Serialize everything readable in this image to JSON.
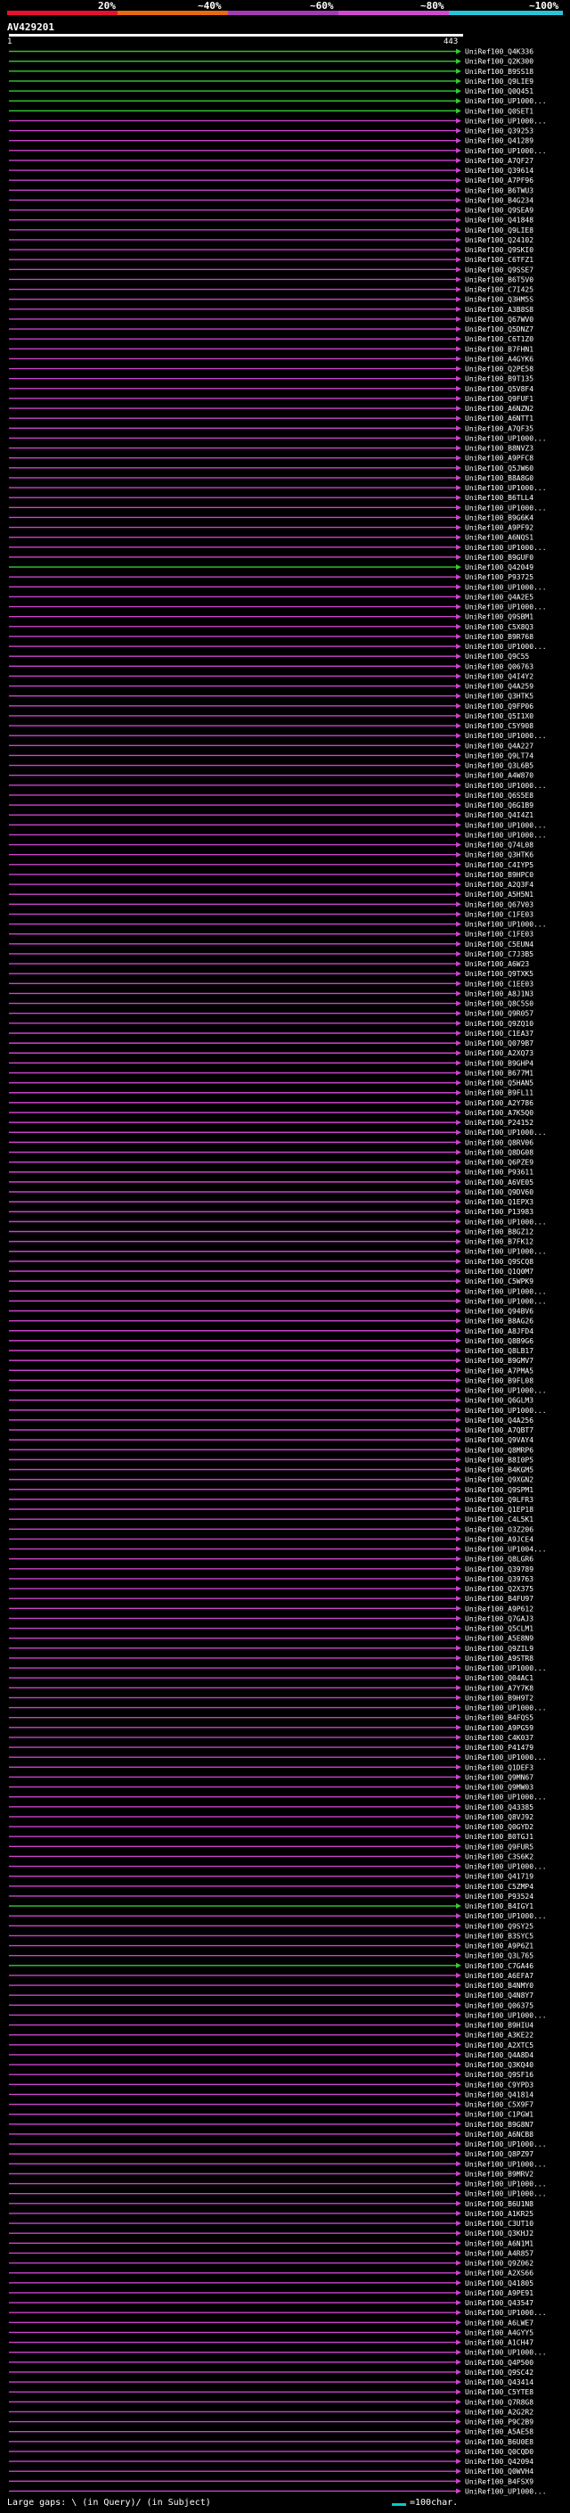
{
  "query": {
    "id": "AV429201",
    "start": "1",
    "end": "443"
  },
  "legend": [
    {
      "label": "20%",
      "color": "#e8112d"
    },
    {
      "label": "~40%",
      "color": "#e86a10"
    },
    {
      "label": "~60%",
      "color": "#a33cb4"
    },
    {
      "label": "~80%",
      "color": "#d04ad0"
    },
    {
      "label": "~100%",
      "color": "#26c6da"
    }
  ],
  "footer": {
    "text": "Large gaps: \\ (in Query)/ (in Subject)",
    "scale_label": "=100char."
  },
  "hits": [
    "UniRef100_Q4K336",
    "UniRef100_Q2K300",
    "UniRef100_B9SS18",
    "UniRef100_Q9LIE9",
    "UniRef100_Q0Q451",
    "UniRef100_UP1000...",
    "UniRef100_Q0SET1",
    "UniRef100_UP1000...",
    "UniRef100_Q39253",
    "UniRef100_Q41289",
    "UniRef100_UP1000...",
    "UniRef100_A7QF27",
    "UniRef100_Q39614",
    "UniRef100_A7PF96",
    "UniRef100_B6TWU3",
    "UniRef100_B4G234",
    "UniRef100_Q9SEA9",
    "UniRef100_Q41848",
    "UniRef100_Q9LIE8",
    "UniRef100_Q24102",
    "UniRef100_Q9SKI0",
    "UniRef100_C6TFZ1",
    "UniRef100_Q9SSE7",
    "UniRef100_B6T5V0",
    "UniRef100_C7I425",
    "UniRef100_Q3HM5S",
    "UniRef100_A3B8S8",
    "UniRef100_Q67WV0",
    "UniRef100_Q5DNZ7",
    "UniRef100_C6T1Z0",
    "UniRef100_B7FHN1",
    "UniRef100_A4GYK6",
    "UniRef100_Q2PE58",
    "UniRef100_B9T135",
    "UniRef100_Q5V8F4",
    "UniRef100_Q9FUF1",
    "UniRef100_A6NZN2",
    "UniRef100_A6NTT1",
    "UniRef100_A7QF35",
    "UniRef100_UP1000...",
    "UniRef100_B8NVZ3",
    "UniRef100_A9PFC8",
    "UniRef100_Q5JW60",
    "UniRef100_B8A8G0",
    "UniRef100_UP1000...",
    "UniRef100_B6TLL4",
    "UniRef100_UP1000...",
    "UniRef100_B9G6K4",
    "UniRef100_A9PF92",
    "UniRef100_A6NQS1",
    "UniRef100_UP1000...",
    "UniRef100_B9GUF0",
    "UniRef100_Q42049",
    "UniRef100_P93725",
    "UniRef100_UP1000...",
    "UniRef100_Q4A2E5",
    "UniRef100_UP1000...",
    "UniRef100_Q9SBM1",
    "UniRef100_C5X8Q3",
    "UniRef100_B9R768",
    "UniRef100_UP1000...",
    "UniRef100_Q9C55",
    "UniRef100_Q06763",
    "UniRef100_Q4I4Y2",
    "UniRef100_Q4A259",
    "UniRef100_Q3HTK5",
    "UniRef100_Q9FP06",
    "UniRef100_Q5I1X0",
    "UniRef100_C5Y908",
    "UniRef100_UP1000...",
    "UniRef100_Q4A227",
    "UniRef100_Q9LT74",
    "UniRef100_Q3L6B5",
    "UniRef100_A4W870",
    "UniRef100_UP1000...",
    "UniRef100_Q6S5E8",
    "UniRef100_Q6G1B9",
    "UniRef100_Q4I4Z1",
    "UniRef100_UP1000...",
    "UniRef100_UP1000...",
    "UniRef100_Q74L08",
    "UniRef100_Q3HTK6",
    "UniRef100_C4IYP5",
    "UniRef100_B9HPC0",
    "UniRef100_A2Q3F4",
    "UniRef100_A5H5N1",
    "UniRef100_Q67V03",
    "UniRef100_C1FE03",
    "UniRef100_UP1000...",
    "UniRef100_C1FE03",
    "UniRef100_C5EUN4",
    "UniRef100_C7J3B5",
    "UniRef100_A6W23",
    "UniRef100_Q9TXK5",
    "UniRef100_C1EE03",
    "UniRef100_A8J1N3",
    "UniRef100_Q8C5S0",
    "UniRef100_Q9R057",
    "UniRef100_Q9ZQ10",
    "UniRef100_C1EA37",
    "UniRef100_Q079B7",
    "UniRef100_A2XQ73",
    "UniRef100_B9GHP4",
    "UniRef100_B677M1",
    "UniRef100_Q5HAN5",
    "UniRef100_B9FL11",
    "UniRef100_A2Y786",
    "UniRef100_A7K5Q0",
    "UniRef100_P24152",
    "UniRef100_UP1000...",
    "UniRef100_Q8RV06",
    "UniRef100_Q8DG08",
    "UniRef100_Q6PZE9",
    "UniRef100_P93611",
    "UniRef100_A6VE05",
    "UniRef100_Q9DV60",
    "UniRef100_Q1EPX3",
    "UniRef100_P13983",
    "UniRef100_UP1000...",
    "UniRef100_B8GZ12",
    "UniRef100_B7FK12",
    "UniRef100_UP1000...",
    "UniRef100_Q9SCQ8",
    "UniRef100_Q1Q0M7",
    "UniRef100_C5WPK9",
    "UniRef100_UP1000...",
    "UniRef100_UP1000...",
    "UniRef100_Q94BV6",
    "UniRef100_B8AG26",
    "UniRef100_A8JFD4",
    "UniRef100_Q8B9G6",
    "UniRef100_Q8LB17",
    "UniRef100_B9GMV7",
    "UniRef100_A7PMA5",
    "UniRef100_B9FL08",
    "UniRef100_UP1000...",
    "UniRef100_Q6GLM3",
    "UniRef100_UP1000...",
    "UniRef100_Q4A256",
    "UniRef100_A7QBT7",
    "UniRef100_Q9VAY4",
    "UniRef100_Q8MRP6",
    "UniRef100_B8I0P5",
    "UniRef100_B4KGM5",
    "UniRef100_Q9XGN2",
    "UniRef100_Q9SPM1",
    "UniRef100_Q9LFR3",
    "UniRef100_Q1EP18",
    "UniRef100_C4L5K1",
    "UniRef100_O3Z206",
    "UniRef100_A9JCE4",
    "UniRef100_UP1004...",
    "UniRef100_Q8LGR6",
    "UniRef100_Q39789",
    "UniRef100_Q39763",
    "UniRef100_Q2X375",
    "UniRef100_B4FU97",
    "UniRef100_A9P612",
    "UniRef100_Q7GAJ3",
    "UniRef100_Q5CLM1",
    "UniRef100_A5E8N9",
    "UniRef100_Q9ZIL9",
    "UniRef100_A9STR8",
    "UniRef100_UP1000...",
    "UniRef100_Q04AC1",
    "UniRef100_A7Y7K8",
    "UniRef100_B9H9T2",
    "UniRef100_UP1000...",
    "UniRef100_B4FQS5",
    "UniRef100_A9PG59",
    "UniRef100_C4K037",
    "UniRef100_P41479",
    "UniRef100_UP1000...",
    "UniRef100_Q1DEF3",
    "UniRef100_Q9MN67",
    "UniRef100_Q9MW03",
    "UniRef100_UP1000...",
    "UniRef100_Q43385",
    "UniRef100_Q8VJ92",
    "UniRef100_Q0GYD2",
    "UniRef100_B0TGJ1",
    "UniRef100_Q9FUR5",
    "UniRef100_C3S6K2",
    "UniRef100_UP1000...",
    "UniRef100_Q41719",
    "UniRef100_C5ZMP4",
    "UniRef100_P93524",
    "UniRef100_B4IGY1",
    "UniRef100_UP1000...",
    "UniRef100_Q9SY25",
    "UniRef100_B3SYC5",
    "UniRef100_A9P6Z1",
    "UniRef100_Q3L765",
    "UniRef100_C7GA46",
    "UniRef100_A6EFA7",
    "UniRef100_B4NMY0",
    "UniRef100_Q4N8Y7",
    "UniRef100_Q06375",
    "UniRef100_UP1000...",
    "UniRef100_B9HIU4",
    "UniRef100_A3KE22",
    "UniRef100_A2XTC5",
    "UniRef100_Q4A8D4",
    "UniRef100_Q3KQ40",
    "UniRef100_Q9SF16",
    "UniRef100_C9YPD3",
    "UniRef100_Q41814",
    "UniRef100_C5X9F7",
    "UniRef100_C1PGW1",
    "UniRef100_B9G8N7",
    "UniRef100_A6NCB8",
    "UniRef100_UP1000...",
    "UniRef100_Q8PZ97",
    "UniRef100_UP1000...",
    "UniRef100_B9MRV2",
    "UniRef100_UP1000...",
    "UniRef100_UP1000...",
    "UniRef100_B6U1N8",
    "UniRef100_A1KR25",
    "UniRef100_C3UT10",
    "UniRef100_Q3KHJ2",
    "UniRef100_A6N1M1",
    "UniRef100_A4R857",
    "UniRef100_Q9Z062",
    "UniRef100_A2XS66",
    "UniRef100_Q41805",
    "UniRef100_A9PE91",
    "UniRef100_Q43547",
    "UniRef100_UP1000...",
    "UniRef100_A6LWE7",
    "UniRef100_A4GYY5",
    "UniRef100_A1CH47",
    "UniRef100_UP1000...",
    "UniRef100_Q4P500",
    "UniRef100_Q9SC42",
    "UniRef100_Q43414",
    "UniRef100_C5YTE8",
    "UniRef100_Q7R8G8",
    "UniRef100_A2G2R2",
    "UniRef100_P9C2B9",
    "UniRef100_A5AE58",
    "UniRef100_B6U0E8",
    "UniRef100_Q0CQD0",
    "UniRef100_Q42094",
    "UniRef100_Q0WVH4",
    "UniRef100_B4FSX9",
    "UniRef100_UP1000..."
  ]
}
